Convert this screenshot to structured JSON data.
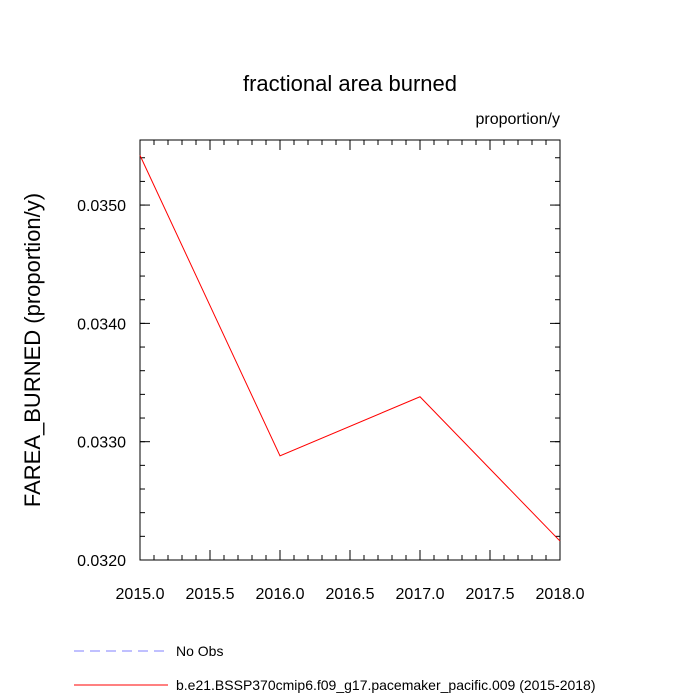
{
  "chart_data": {
    "type": "line",
    "title": "fractional area burned",
    "units": "proportion/y",
    "ylabel": "FAREA_BURNED  (proportion/y)",
    "xlabel": "",
    "xlim": [
      2015.0,
      2018.0
    ],
    "ylim": [
      0.032,
      0.03555
    ],
    "x_ticks": [
      2015.0,
      2015.5,
      2016.0,
      2016.5,
      2017.0,
      2017.5,
      2018.0
    ],
    "x_tick_labels": [
      "2015.0",
      "2015.5",
      "2016.0",
      "2016.5",
      "2017.0",
      "2017.5",
      "2018.0"
    ],
    "y_ticks": [
      0.032,
      0.033,
      0.034,
      0.035
    ],
    "y_tick_labels": [
      "0.0320",
      "0.0330",
      "0.0340",
      "0.0350"
    ],
    "grid": false,
    "legend_position": "bottom",
    "series": [
      {
        "name": "b.e21.BSSP370cmip6.f09_g17.pacemaker_pacific.009 (2015-2018)",
        "color": "#ff0000",
        "dash": "solid",
        "x": [
          2015,
          2016,
          2017,
          2018
        ],
        "y": [
          0.03542,
          0.03288,
          0.03338,
          0.03216
        ]
      }
    ],
    "legend": [
      {
        "label": "No Obs",
        "color": "#8080ff",
        "dash": "dashed"
      },
      {
        "label": "b.e21.BSSP370cmip6.f09_g17.pacemaker_pacific.009 (2015-2018)",
        "color": "#ff0000",
        "dash": "solid"
      }
    ]
  }
}
